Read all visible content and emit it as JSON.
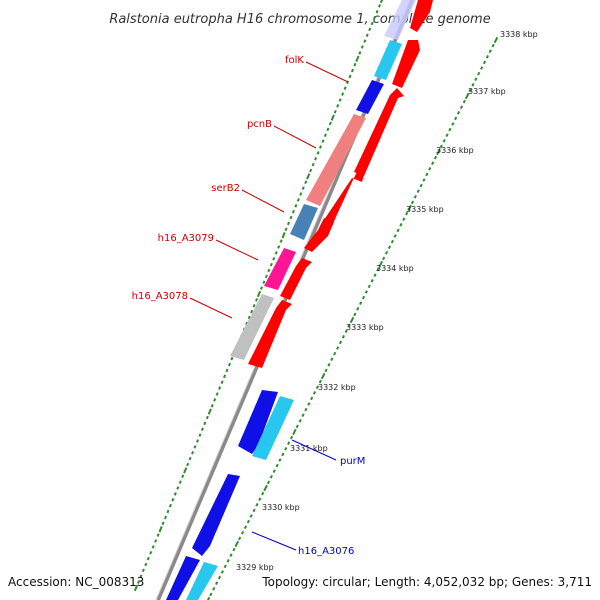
{
  "title": "Ralstonia eutropha H16 chromosome 1, complete genome",
  "accession": "Accession: NC_008313",
  "topology": "Topology: circular; Length: 4,052,032 bp; Genes: 3,711",
  "colors": {
    "background": "#ffffff",
    "backbone": "#8a8a8a",
    "tick_dots": "#2e8b2e",
    "forward_gene": "#ff0000",
    "forward_gene_light": "#f08080",
    "reverse_gene": "#1010e6",
    "reverse_gene_light": "#27c7f0",
    "label_forward": "#cc0000",
    "label_reverse": "#0000cc"
  },
  "ticks": [
    {
      "kbp": 3329,
      "label": "3329 kbp"
    },
    {
      "kbp": 3330,
      "label": "3330 kbp"
    },
    {
      "kbp": 3331,
      "label": "3331 kbp"
    },
    {
      "kbp": 3332,
      "label": "3332 kbp"
    },
    {
      "kbp": 3333,
      "label": "3333 kbp"
    },
    {
      "kbp": 3334,
      "label": "3334 kbp"
    },
    {
      "kbp": 3335,
      "label": "3335 kbp"
    },
    {
      "kbp": 3336,
      "label": "3336 kbp"
    },
    {
      "kbp": 3337,
      "label": "3337 kbp"
    },
    {
      "kbp": 3338,
      "label": "3338 kbp"
    }
  ],
  "features": [
    {
      "name": "folK",
      "strand": "forward",
      "label": "folK",
      "color": "#1010e6"
    },
    {
      "name": "pcnB",
      "strand": "forward",
      "label": "pcnB",
      "color": "#f08080"
    },
    {
      "name": "serB2",
      "strand": "forward",
      "label": "serB2",
      "color": "#4682b4"
    },
    {
      "name": "h16_A3079",
      "strand": "forward",
      "label": "h16_A3079",
      "color": "#ff1493"
    },
    {
      "name": "h16_A3078",
      "strand": "forward",
      "label": "h16_A3078",
      "color": "#c0c0c0"
    },
    {
      "name": "purM",
      "strand": "reverse",
      "label": "purM",
      "color": "#27c7f0"
    },
    {
      "name": "h16_A3076",
      "strand": "reverse",
      "label": "h16_A3076",
      "color": "#1010e6"
    }
  ]
}
